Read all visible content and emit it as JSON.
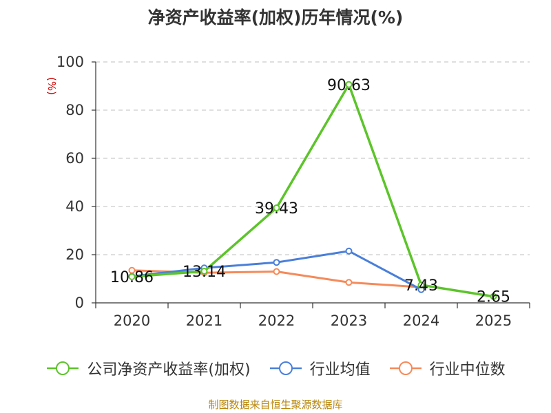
{
  "chart_data": {
    "type": "line",
    "title": "净资产收益率(加权)历年情况(%)",
    "ylabel": "(%)",
    "categories": [
      "2020",
      "2021",
      "2022",
      "2023",
      "2024",
      "2025"
    ],
    "ylim": [
      0,
      100
    ],
    "yticks": [
      0,
      20,
      40,
      60,
      80,
      100
    ],
    "grid": "horizontal-dashed",
    "legend_position": "bottom",
    "series": [
      {
        "name": "公司净资产收益率(加权)",
        "color": "#5cc42a",
        "values": [
          10.86,
          13.14,
          39.43,
          90.63,
          7.43,
          2.65
        ],
        "labels": [
          "10.86",
          "13.14",
          "39.43",
          "90.63",
          "7.43",
          "2.65"
        ]
      },
      {
        "name": "行业均值",
        "color": "#4a7fd9",
        "values": [
          11.0,
          14.5,
          16.8,
          21.5,
          5.5,
          null
        ]
      },
      {
        "name": "行业中位数",
        "color": "#f58a5a",
        "values": [
          13.5,
          12.5,
          13.0,
          8.5,
          6.5,
          null
        ]
      }
    ]
  },
  "source": "制图数据来自恒生聚源数据库"
}
